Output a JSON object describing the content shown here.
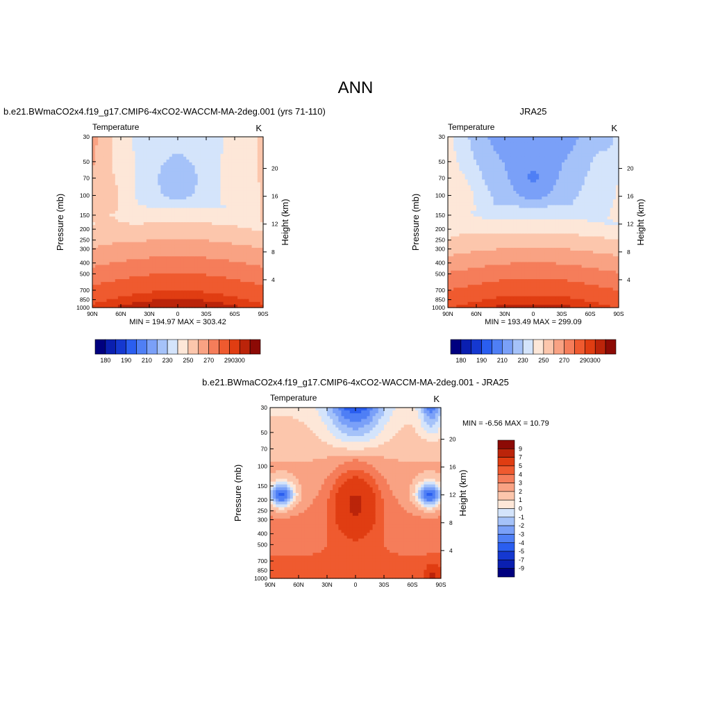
{
  "page_title": "ANN",
  "colorbar_levels_abs": [
    "180",
    "190",
    "210",
    "230",
    "250",
    "270",
    "290",
    "300"
  ],
  "colorbar_levels_diff": [
    "9",
    "7",
    "5",
    "4",
    "3",
    "2",
    "1",
    "0",
    "-1",
    "-2",
    "-3",
    "-4",
    "-5",
    "-7",
    "-9"
  ],
  "palette_abs": [
    "#00007f",
    "#0a1fb0",
    "#1538d0",
    "#2a5ef0",
    "#4f7ff5",
    "#7aa0f8",
    "#a5c2f9",
    "#d4e4fb",
    "#fde7d8",
    "#fcc6ac",
    "#f9a283",
    "#f57d5a",
    "#ef5a2f",
    "#e03d12",
    "#bb240a",
    "#8c0a05"
  ],
  "palette_diff": [
    "#00007f",
    "#0a1fb0",
    "#1538d0",
    "#2a5ef0",
    "#4f7ff5",
    "#7aa0f8",
    "#a5c2f9",
    "#d4e4fb",
    "#fde7d8",
    "#fcc6ac",
    "#f9a283",
    "#f57d5a",
    "#ef5a2f",
    "#e03d12",
    "#bb240a",
    "#8c0a05"
  ],
  "chart_data": [
    {
      "type": "heatmap",
      "title": "b.e21.BWmaCO2x4.f19_g17.CMIP6-4xCO2-WACCM-MA-2deg.001 (yrs 71-110)",
      "subtitle_left": "Temperature",
      "units": "K",
      "ylabel": "Pressure (mb)",
      "ylabel_right": "Height (km)",
      "x_ticks": [
        "90N",
        "60N",
        "30N",
        "0",
        "30S",
        "60S",
        "90S"
      ],
      "y_ticks": [
        "30",
        "50",
        "70",
        "100",
        "150",
        "200",
        "250",
        "300",
        "400",
        "500",
        "700",
        "850",
        "1000"
      ],
      "y_ticks_right": [
        "20",
        "16",
        "12",
        "8",
        "4"
      ],
      "stats": "MIN = 194.97  MAX = 303.42",
      "min": 194.97,
      "max": 303.42
    },
    {
      "type": "heatmap",
      "title": "JRA25",
      "subtitle_left": "Temperature",
      "units": "K",
      "ylabel": "Pressure (mb)",
      "ylabel_right": "Height (km)",
      "x_ticks": [
        "90N",
        "60N",
        "30N",
        "0",
        "30S",
        "60S",
        "90S"
      ],
      "y_ticks": [
        "30",
        "50",
        "70",
        "100",
        "150",
        "200",
        "250",
        "300",
        "400",
        "500",
        "700",
        "850",
        "1000"
      ],
      "y_ticks_right": [
        "20",
        "16",
        "12",
        "8",
        "4"
      ],
      "stats": "MIN = 193.49  MAX = 299.09",
      "min": 193.49,
      "max": 299.09
    },
    {
      "type": "heatmap",
      "title": "b.e21.BWmaCO2x4.f19_g17.CMIP6-4xCO2-WACCM-MA-2deg.001 - JRA25",
      "subtitle_left": "Temperature",
      "units": "K",
      "ylabel": "Pressure (mb)",
      "ylabel_right": "Height (km)",
      "x_ticks": [
        "90N",
        "60N",
        "30N",
        "0",
        "30S",
        "60S",
        "90S"
      ],
      "y_ticks": [
        "30",
        "50",
        "70",
        "100",
        "150",
        "200",
        "250",
        "300",
        "400",
        "500",
        "700",
        "850",
        "1000"
      ],
      "y_ticks_right": [
        "20",
        "16",
        "12",
        "8",
        "4"
      ],
      "stats": "MIN =  -6.56  MAX =  10.79",
      "min": -6.56,
      "max": 10.79
    }
  ]
}
